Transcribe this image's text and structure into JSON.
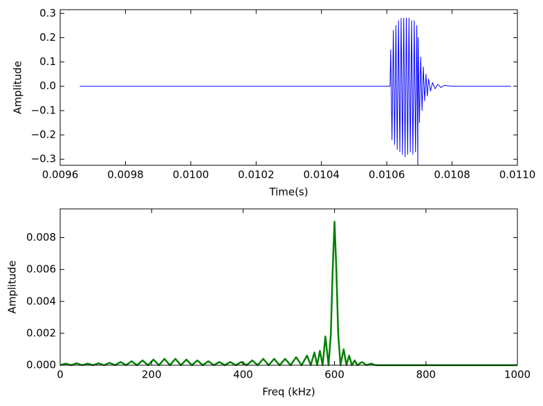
{
  "chart_data": [
    {
      "type": "line",
      "x_label": "Time(s)",
      "y_label": "Amplitude",
      "xlim": [
        0.0096,
        0.011
      ],
      "ylim": [
        -0.325,
        0.315
      ],
      "xticks": [
        0.0096,
        0.0098,
        {
          "value": 0.01,
          "label": "0.0100"
        },
        0.0102,
        0.0104,
        0.0106,
        0.0108,
        {
          "value": 0.011,
          "label": "0.0110"
        }
      ],
      "yticks": [
        {
          "value": -0.3,
          "label": "−0.3"
        },
        {
          "value": -0.2,
          "label": "−0.2"
        },
        {
          "value": -0.1,
          "label": "−0.1"
        },
        {
          "value": 0,
          "label": "0.0"
        },
        0.1,
        0.2,
        0.3
      ],
      "series": [
        {
          "color": "#0000ff",
          "line_width": 1,
          "x": [
            0.00966,
            0.0098,
            0.01,
            0.0102,
            0.0104,
            0.01061,
            0.010612,
            0.010616,
            0.01062,
            0.010624,
            0.010628,
            0.010632,
            0.010636,
            0.01064,
            0.010644,
            0.010648,
            0.010652,
            0.010656,
            0.01066,
            0.010664,
            0.010668,
            0.010672,
            0.010676,
            0.01068,
            0.010684,
            0.010688,
            0.010692,
            0.010695,
            0.010696,
            0.0107,
            0.010704,
            0.010708,
            0.010712,
            0.010716,
            0.01072,
            0.010724,
            0.010728,
            0.010734,
            0.01074,
            0.010748,
            0.010756,
            0.010766,
            0.010776,
            0.0108,
            0.01098
          ],
          "values": [
            0,
            0,
            0,
            0,
            0,
            0,
            0.15,
            -0.22,
            0.23,
            -0.24,
            0.25,
            -0.26,
            0.27,
            -0.27,
            0.28,
            -0.28,
            0.28,
            -0.29,
            0.28,
            -0.28,
            0.28,
            -0.27,
            0.27,
            -0.28,
            0.27,
            -0.27,
            0.25,
            -0.325,
            0.2,
            -0.15,
            0.12,
            -0.1,
            0.08,
            -0.06,
            0.05,
            -0.04,
            0.03,
            -0.02,
            0.015,
            -0.01,
            0.008,
            -0.005,
            0.004,
            0,
            0
          ]
        }
      ]
    },
    {
      "type": "line",
      "x_label": "Freq (kHz)",
      "y_label": "Amplitude",
      "xlim": [
        0,
        1000
      ],
      "ylim": [
        0,
        0.0098
      ],
      "xticks": [
        0,
        200,
        400,
        600,
        800,
        1000
      ],
      "yticks": [
        {
          "value": 0,
          "label": "0.000"
        },
        0.002,
        0.004,
        0.006,
        0.008
      ],
      "series": [
        {
          "color": "#008000",
          "line_width": 2.5,
          "x": [
            0,
            12,
            24,
            36,
            48,
            60,
            72,
            84,
            96,
            108,
            120,
            132,
            144,
            156,
            168,
            180,
            192,
            204,
            216,
            228,
            240,
            252,
            264,
            276,
            288,
            300,
            312,
            324,
            336,
            348,
            360,
            372,
            384,
            396,
            408,
            420,
            432,
            444,
            456,
            468,
            480,
            492,
            504,
            516,
            528,
            540,
            548,
            556,
            562,
            568,
            574,
            580,
            587,
            592,
            596,
            600,
            604,
            608,
            613,
            620,
            626,
            632,
            638,
            644,
            650,
            660,
            670,
            680,
            690,
            1000
          ],
          "values": [
            0,
            0.0001,
            0,
            0.00012,
            0,
            0.0001,
            0,
            0.00012,
            0,
            0.00015,
            0,
            0.0002,
            0,
            0.00025,
            0,
            0.0003,
            0,
            0.00035,
            0,
            0.0004,
            0,
            0.0004,
            0,
            0.00035,
            0,
            0.0003,
            0,
            0.00025,
            0,
            0.0002,
            0,
            0.0002,
            0,
            0.0002,
            0,
            0.0003,
            0,
            0.0004,
            0,
            0.0004,
            0,
            0.0004,
            0,
            0.0005,
            0,
            0.0006,
            0,
            0.0008,
            0,
            0.0009,
            0,
            0.0018,
            0,
            0.002,
            0.006,
            0.009,
            0.006,
            0.002,
            0,
            0.001,
            0,
            0.0006,
            0,
            0.0003,
            0,
            0.0002,
            0,
            0.0001,
            0,
            0
          ]
        }
      ]
    }
  ]
}
